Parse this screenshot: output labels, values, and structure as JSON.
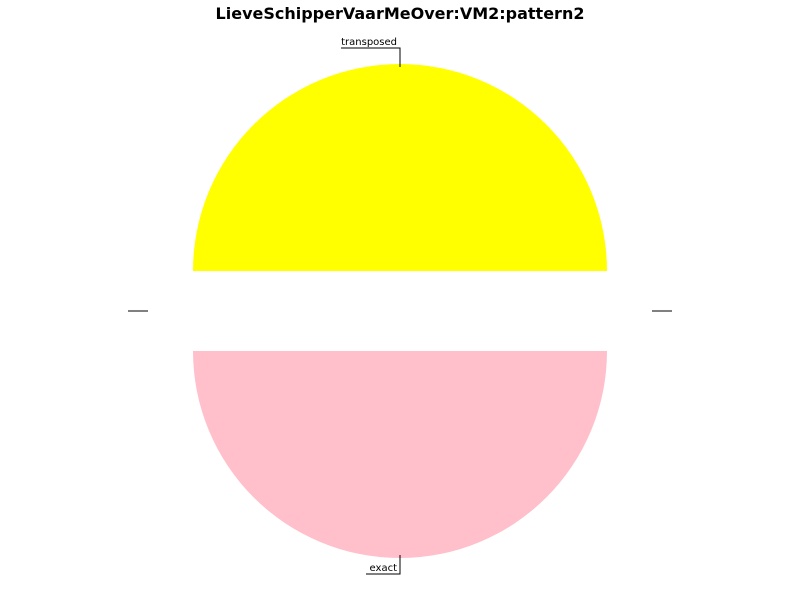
{
  "chart_data": {
    "type": "pie",
    "title": "LieveSchipperVaarMeOver:VM2:pattern2",
    "slices": [
      {
        "label": "transposed",
        "value": 1,
        "color": "#ffff00",
        "exploded": true
      },
      {
        "label": "exact",
        "value": 1,
        "color": "#ffc0cb",
        "exploded": true
      }
    ],
    "start_angle_deg": 0,
    "direction": "counterclockwise",
    "legend": "none",
    "grid": false
  }
}
